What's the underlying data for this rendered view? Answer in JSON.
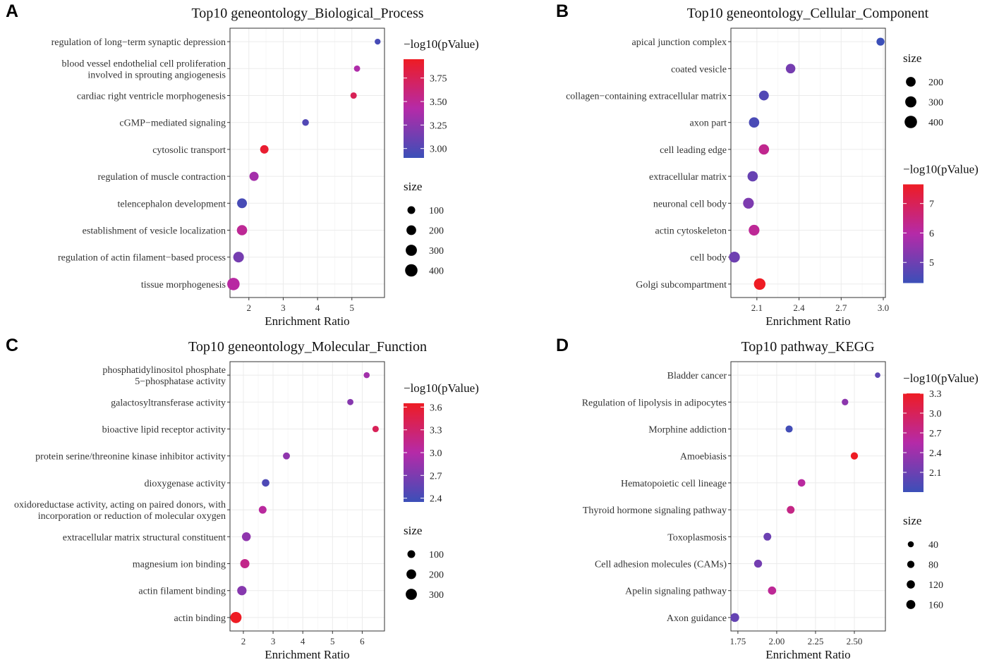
{
  "colors": {
    "low": "#3b4fb8",
    "mid": "#b52aa8",
    "high": "#ee1c24"
  },
  "chart_data": [
    {
      "panel": "A",
      "type": "scatter",
      "title": "Top10 geneontology_Biological_Process",
      "xlabel": "Enrichment Ratio",
      "xlim": [
        1.45,
        5.95
      ],
      "xticks": [
        2,
        3,
        4,
        5
      ],
      "xtick_labels": [
        "2",
        "3",
        "4",
        "5"
      ],
      "categories": [
        [
          "regulation of long−term synaptic depression"
        ],
        [
          "blood vessel endothelial cell proliferation",
          "involved in sprouting angiogenesis"
        ],
        [
          "cardiac right ventricle morphogenesis"
        ],
        [
          "cGMP−mediated signaling"
        ],
        [
          "cytosolic transport"
        ],
        [
          "regulation of muscle contraction"
        ],
        [
          "telencephalon development"
        ],
        [
          "establishment of vesicle localization"
        ],
        [
          "regulation of actin filament−based process"
        ],
        [
          "tissue morphogenesis"
        ]
      ],
      "x": [
        5.75,
        5.15,
        5.05,
        3.65,
        2.45,
        2.15,
        1.8,
        1.8,
        1.7,
        1.55
      ],
      "pval": [
        2.95,
        3.4,
        3.75,
        3.0,
        3.9,
        3.35,
        2.95,
        3.5,
        3.15,
        3.45
      ],
      "size": [
        35,
        45,
        50,
        60,
        130,
        170,
        210,
        240,
        260,
        400
      ],
      "color_legend": {
        "title": "−log10(pValue)",
        "range": [
          2.9,
          3.95
        ],
        "ticks": [
          3.0,
          3.25,
          3.5,
          3.75
        ],
        "tick_labels": [
          "3.00",
          "3.25",
          "3.50",
          "3.75"
        ]
      },
      "size_legend": {
        "title": "size",
        "values": [
          100,
          200,
          300,
          400
        ],
        "labels": [
          "100",
          "200",
          "300",
          "400"
        ]
      },
      "legend_order": "color-first"
    },
    {
      "panel": "B",
      "type": "scatter",
      "title": "Top10 geneontology_Cellular_Component",
      "xlabel": "Enrichment Ratio",
      "xlim": [
        1.915,
        3.015
      ],
      "xticks": [
        2.1,
        2.4,
        2.7,
        3.0
      ],
      "xtick_labels": [
        "2.1",
        "2.4",
        "2.7",
        "3.0"
      ],
      "categories": [
        [
          "apical junction complex"
        ],
        [
          "coated vesicle"
        ],
        [
          "collagen−containing extracellular matrix"
        ],
        [
          "axon part"
        ],
        [
          "cell leading edge"
        ],
        [
          "extracellular matrix"
        ],
        [
          "neuronal cell body"
        ],
        [
          "actin cytoskeleton"
        ],
        [
          "cell body"
        ],
        [
          "Golgi subcompartment"
        ]
      ],
      "x": [
        2.98,
        2.34,
        2.15,
        2.08,
        2.15,
        2.07,
        2.04,
        2.08,
        1.94,
        2.12
      ],
      "pval": [
        4.2,
        5.1,
        4.6,
        4.5,
        6.3,
        4.9,
        5.2,
        6.2,
        5.0,
        7.7
      ],
      "size": [
        110,
        190,
        210,
        240,
        240,
        240,
        270,
        270,
        280,
        330
      ],
      "color_legend": {
        "title": "−log10(pValue)",
        "range": [
          4.3,
          7.65
        ],
        "ticks": [
          5,
          6,
          7
        ],
        "tick_labels": [
          "5",
          "6",
          "7"
        ]
      },
      "size_legend": {
        "title": "size",
        "values": [
          200,
          300,
          400
        ],
        "labels": [
          "200",
          "300",
          "400"
        ]
      },
      "legend_order": "size-first"
    },
    {
      "panel": "C",
      "type": "scatter",
      "title": "Top10 geneontology_Molecular_Function",
      "xlabel": "Enrichment Ratio",
      "xlim": [
        1.55,
        6.75
      ],
      "xticks": [
        2,
        3,
        4,
        5,
        6
      ],
      "xtick_labels": [
        "2",
        "3",
        "4",
        "5",
        "6"
      ],
      "categories": [
        [
          "phosphatidylinositol phosphate",
          "5−phosphatase activity"
        ],
        [
          "galactosyltransferase activity"
        ],
        [
          "bioactive lipid receptor activity"
        ],
        [
          "protein serine/threonine kinase inhibitor activity"
        ],
        [
          "dioxygenase activity"
        ],
        [
          "oxidoreductase activity, acting on paired donors, with",
          "incorporation or reduction of molecular oxygen"
        ],
        [
          "extracellular matrix structural constituent"
        ],
        [
          "magnesium ion binding"
        ],
        [
          "actin filament binding"
        ],
        [
          "actin binding"
        ]
      ],
      "x": [
        6.15,
        5.6,
        6.45,
        3.45,
        2.75,
        2.65,
        2.1,
        2.05,
        1.95,
        1.75
      ],
      "pval": [
        2.9,
        2.75,
        3.4,
        2.8,
        2.45,
        3.05,
        2.8,
        3.15,
        2.75,
        3.65
      ],
      "size": [
        40,
        45,
        50,
        70,
        90,
        100,
        150,
        170,
        180,
        300
      ],
      "color_legend": {
        "title": "−log10(pValue)",
        "range": [
          2.35,
          3.65
        ],
        "ticks": [
          2.4,
          2.7,
          3.0,
          3.3,
          3.6
        ],
        "tick_labels": [
          "2.4",
          "2.7",
          "3.0",
          "3.3",
          "3.6"
        ]
      },
      "size_legend": {
        "title": "size",
        "values": [
          100,
          200,
          300
        ],
        "labels": [
          "100",
          "200",
          "300"
        ]
      },
      "legend_order": "color-first"
    },
    {
      "panel": "D",
      "type": "scatter",
      "title": "Top10 pathway_KEGG",
      "xlabel": "Enrichment Ratio",
      "xlim": [
        1.705,
        2.7
      ],
      "xticks": [
        1.75,
        2.0,
        2.25,
        2.5
      ],
      "xtick_labels": [
        "1.75",
        "2.00",
        "2.25",
        "2.50"
      ],
      "categories": [
        [
          "Bladder cancer"
        ],
        [
          "Regulation of lipolysis in adipocytes"
        ],
        [
          "Morphine addiction"
        ],
        [
          "Amoebiasis"
        ],
        [
          "Hematopoietic cell lineage"
        ],
        [
          "Thyroid hormone signaling pathway"
        ],
        [
          "Toxoplasmosis"
        ],
        [
          "Cell adhesion molecules (CAMs)"
        ],
        [
          "Apelin signaling pathway"
        ],
        [
          "Axon guidance"
        ]
      ],
      "x": [
        2.65,
        2.44,
        2.08,
        2.5,
        2.16,
        2.09,
        1.94,
        1.88,
        1.97,
        1.73
      ],
      "pval": [
        2.0,
        2.3,
        1.85,
        3.3,
        2.6,
        2.75,
        2.1,
        2.15,
        2.65,
        2.05
      ],
      "size": [
        25,
        55,
        75,
        80,
        90,
        100,
        100,
        110,
        120,
        150
      ],
      "color_legend": {
        "title": "−log10(pValue)",
        "range": [
          1.8,
          3.3
        ],
        "ticks": [
          2.1,
          2.4,
          2.7,
          3.0,
          3.3
        ],
        "tick_labels": [
          "2.1",
          "2.4",
          "2.7",
          "3.0",
          "3.3"
        ]
      },
      "size_legend": {
        "title": "size",
        "values": [
          40,
          80,
          120,
          160
        ],
        "labels": [
          "40",
          "80",
          "120",
          "160"
        ]
      },
      "legend_order": "color-first"
    }
  ]
}
